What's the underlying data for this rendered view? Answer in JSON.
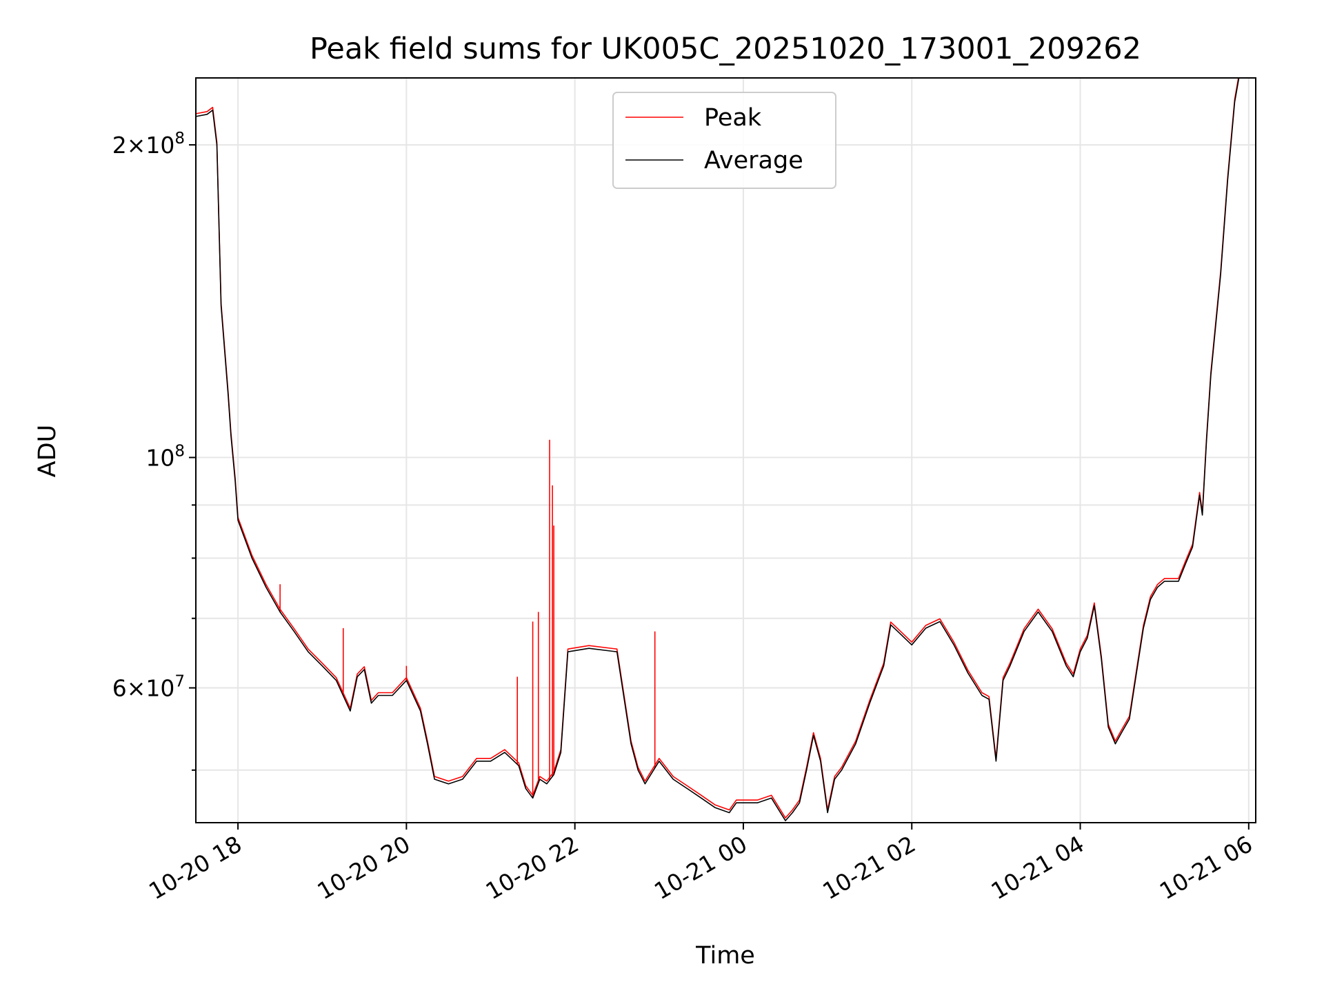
{
  "chart_data": {
    "type": "line",
    "title": "Peak field sums for UK005C_20251020_173001_209262",
    "xlabel": "Time",
    "ylabel": "ADU",
    "x_unit": "datetime",
    "y_scale": "log",
    "xlim": [
      "2025-10-20 17:30",
      "2025-10-21 06:05"
    ],
    "ylim": [
      44500000,
      232000000
    ],
    "grid": true,
    "legend_position": "top-center",
    "x_ticks": [
      {
        "value": "2025-10-20 18:00",
        "label": "10-20 18"
      },
      {
        "value": "2025-10-20 20:00",
        "label": "10-20 20"
      },
      {
        "value": "2025-10-20 22:00",
        "label": "10-20 22"
      },
      {
        "value": "2025-10-21 00:00",
        "label": "10-21 00"
      },
      {
        "value": "2025-10-21 02:00",
        "label": "10-21 02"
      },
      {
        "value": "2025-10-21 04:00",
        "label": "10-21 04"
      },
      {
        "value": "2025-10-21 06:00",
        "label": "10-21 06"
      }
    ],
    "y_ticks": [
      {
        "value": 60000000,
        "base": "6",
        "exponent": "7"
      },
      {
        "value": 100000000,
        "base": "10",
        "exponent": "8"
      },
      {
        "value": 200000000,
        "base": "2",
        "exponent": "8"
      }
    ],
    "y_minor_ticks": [
      50000000,
      70000000,
      80000000,
      90000000
    ],
    "series": [
      {
        "name": "Peak",
        "color": "#ff0000",
        "x": [
          "2025-10-20 19:15",
          "2025-10-20 20:00",
          "2025-10-20 21:19",
          "2025-10-20 21:30",
          "2025-10-20 21:34",
          "2025-10-20 21:42",
          "2025-10-20 21:44",
          "2025-10-20 21:45",
          "2025-10-20 22:57",
          "2025-10-20 18:30"
        ],
        "y": [
          68500000,
          63000000,
          61500000,
          69500000,
          71000000,
          104000000,
          94000000,
          86000000,
          68000000,
          75500000
        ]
      },
      {
        "name": "Average",
        "color": "#000000",
        "x": [
          "2025-10-20 17:30",
          "2025-10-20 17:38",
          "2025-10-20 17:42",
          "2025-10-20 17:45",
          "2025-10-20 17:48",
          "2025-10-20 17:53",
          "2025-10-20 17:55",
          "2025-10-20 17:58",
          "2025-10-20 18:00",
          "2025-10-20 18:10",
          "2025-10-20 18:20",
          "2025-10-20 18:30",
          "2025-10-20 18:40",
          "2025-10-20 18:50",
          "2025-10-20 19:00",
          "2025-10-20 19:10",
          "2025-10-20 19:20",
          "2025-10-20 19:25",
          "2025-10-20 19:30",
          "2025-10-20 19:35",
          "2025-10-20 19:40",
          "2025-10-20 19:45",
          "2025-10-20 19:50",
          "2025-10-20 20:00",
          "2025-10-20 20:10",
          "2025-10-20 20:15",
          "2025-10-20 20:20",
          "2025-10-20 20:30",
          "2025-10-20 20:40",
          "2025-10-20 20:50",
          "2025-10-20 21:00",
          "2025-10-20 21:10",
          "2025-10-20 21:20",
          "2025-10-20 21:25",
          "2025-10-20 21:30",
          "2025-10-20 21:35",
          "2025-10-20 21:40",
          "2025-10-20 21:45",
          "2025-10-20 21:50",
          "2025-10-20 21:55",
          "2025-10-20 22:10",
          "2025-10-20 22:30",
          "2025-10-20 22:40",
          "2025-10-20 22:45",
          "2025-10-20 22:50",
          "2025-10-20 23:00",
          "2025-10-20 23:10",
          "2025-10-20 23:20",
          "2025-10-20 23:30",
          "2025-10-20 23:40",
          "2025-10-20 23:50",
          "2025-10-20 23:55",
          "2025-10-21 00:10",
          "2025-10-21 00:20",
          "2025-10-21 00:30",
          "2025-10-21 00:35",
          "2025-10-21 00:40",
          "2025-10-21 00:45",
          "2025-10-21 00:50",
          "2025-10-21 00:55",
          "2025-10-21 01:00",
          "2025-10-21 01:05",
          "2025-10-21 01:10",
          "2025-10-21 01:20",
          "2025-10-21 01:30",
          "2025-10-21 01:40",
          "2025-10-21 01:45",
          "2025-10-21 01:50",
          "2025-10-21 02:00",
          "2025-10-21 02:10",
          "2025-10-21 02:20",
          "2025-10-21 02:30",
          "2025-10-21 02:40",
          "2025-10-21 02:50",
          "2025-10-21 02:55",
          "2025-10-21 03:00",
          "2025-10-21 03:05",
          "2025-10-21 03:10",
          "2025-10-21 03:20",
          "2025-10-21 03:25",
          "2025-10-21 03:30",
          "2025-10-21 03:40",
          "2025-10-21 03:50",
          "2025-10-21 03:55",
          "2025-10-21 04:00",
          "2025-10-21 04:05",
          "2025-10-21 04:10",
          "2025-10-21 04:15",
          "2025-10-21 04:20",
          "2025-10-21 04:25",
          "2025-10-21 04:30",
          "2025-10-21 04:35",
          "2025-10-21 04:40",
          "2025-10-21 04:45",
          "2025-10-21 04:50",
          "2025-10-21 04:55",
          "2025-10-21 05:00",
          "2025-10-21 05:10",
          "2025-10-21 05:15",
          "2025-10-21 05:20",
          "2025-10-21 05:25",
          "2025-10-21 05:27",
          "2025-10-21 05:30",
          "2025-10-21 05:33",
          "2025-10-21 05:40",
          "2025-10-21 05:45",
          "2025-10-21 05:50",
          "2025-10-21 05:53"
        ],
        "y": [
          213000000,
          214000000,
          216000000,
          200000000,
          140000000,
          115000000,
          105000000,
          95000000,
          87000000,
          80000000,
          75000000,
          71000000,
          68000000,
          65000000,
          63000000,
          61000000,
          57000000,
          61500000,
          62500000,
          58000000,
          59000000,
          59000000,
          59000000,
          61000000,
          57000000,
          53000000,
          49000000,
          48500000,
          49000000,
          51000000,
          51000000,
          52000000,
          50500000,
          48000000,
          47000000,
          49000000,
          48500000,
          49500000,
          52000000,
          65000000,
          65500000,
          65000000,
          53000000,
          50000000,
          48500000,
          51000000,
          49000000,
          48000000,
          47000000,
          46000000,
          45500000,
          46500000,
          46500000,
          47000000,
          44700000,
          45500000,
          46500000,
          50000000,
          54000000,
          51000000,
          45500000,
          49000000,
          50000000,
          53000000,
          58000000,
          63000000,
          69000000,
          68000000,
          66000000,
          68500000,
          69500000,
          66000000,
          62000000,
          59000000,
          58500000,
          51000000,
          61000000,
          63000000,
          68000000,
          69500000,
          71000000,
          68000000,
          63000000,
          61500000,
          65000000,
          67000000,
          72000000,
          64000000,
          55000000,
          53000000,
          54500000,
          56000000,
          62000000,
          68500000,
          73000000,
          75000000,
          76000000,
          76000000,
          79000000,
          82000000,
          92000000,
          88000000,
          104000000,
          120000000,
          150000000,
          185000000,
          220000000,
          232000000
        ]
      }
    ]
  }
}
